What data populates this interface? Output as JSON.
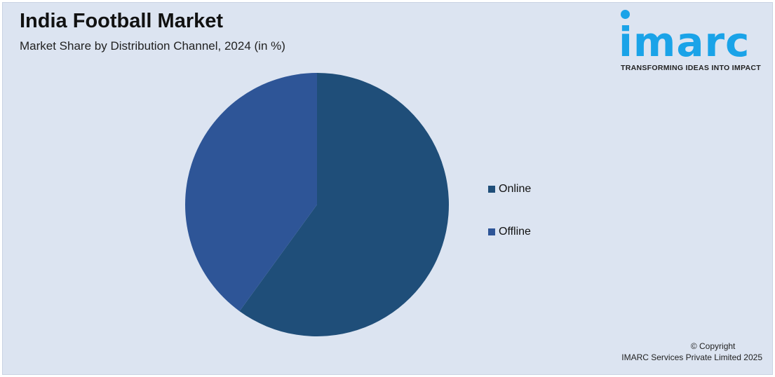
{
  "header": {
    "title": "India Football Market",
    "subtitle": "Market Share by Distribution Channel, 2024 (in %)"
  },
  "logo": {
    "word": "imarc",
    "tagline": "TRANSFORMING IDEAS INTO IMPACT",
    "color": "#1aa3e8"
  },
  "chart_data": {
    "type": "pie",
    "title": "India Football Market",
    "subtitle": "Market Share by Distribution Channel, 2024 (in %)",
    "categories": [
      "Online",
      "Offline"
    ],
    "values": [
      60,
      40
    ],
    "colors": [
      "#1f4e79",
      "#2e5597"
    ],
    "legend_position": "right"
  },
  "footer": {
    "copyright": "© Copyright",
    "company": "IMARC Services Private Limited 2025"
  }
}
